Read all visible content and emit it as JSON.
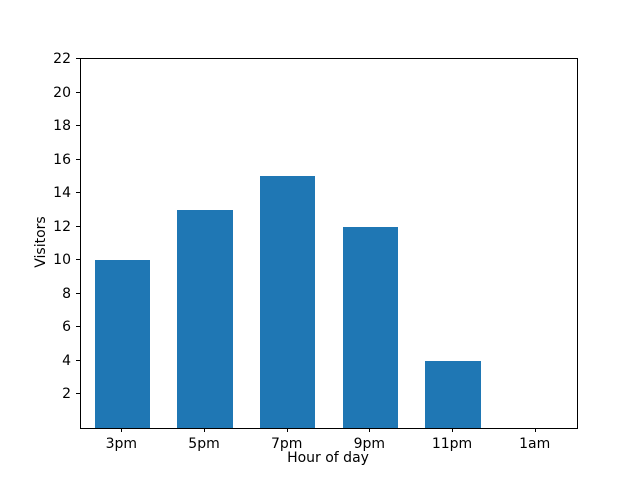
{
  "chart_data": {
    "type": "bar",
    "title": "",
    "xlabel": "Hour of day",
    "ylabel": "Visitors",
    "categories": [
      "3pm",
      "5pm",
      "7pm",
      "9pm",
      "11pm",
      "1am"
    ],
    "values": [
      10,
      13,
      15,
      12,
      4,
      0
    ],
    "ylim": [
      0,
      22
    ],
    "yticks": [
      2,
      4,
      6,
      8,
      10,
      12,
      14,
      16,
      18,
      20,
      22
    ],
    "bar_color": "#1f77b4",
    "axis_color": "#000000",
    "background_color": "#ffffff",
    "bar_width_fraction": 0.67,
    "grid": false,
    "legend": null
  }
}
